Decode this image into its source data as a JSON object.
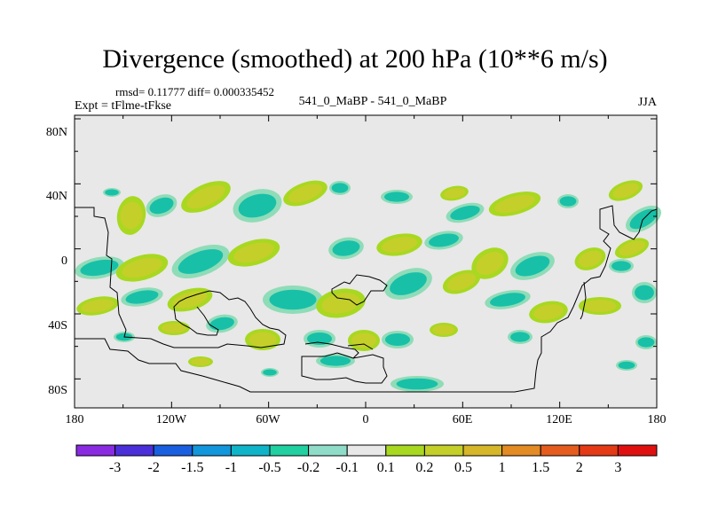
{
  "title": "Divergence (smoothed) at 200 hPa (10**6 m/s)",
  "stats": "rmsd= 0.11777 diff= 0.000335452",
  "experiment": "Expt = tFlme-tFkse",
  "case_label": "541_0_MaBP - 541_0_MaBP",
  "season": "JJA",
  "axes": {
    "lat_ticks": [
      "80N",
      "40N",
      "0",
      "40S",
      "80S"
    ],
    "lon_ticks": [
      "180",
      "120W",
      "60W",
      "0",
      "60E",
      "120E",
      "180"
    ]
  },
  "colorbar": {
    "labels": [
      "-3",
      "-2",
      "-1.5",
      "-1",
      "-0.5",
      "-0.2",
      "-0.1",
      "0.1",
      "0.2",
      "0.5",
      "1",
      "1.5",
      "2",
      "3"
    ],
    "colors": [
      "#8a2be2",
      "#4b2fd9",
      "#1a5fe0",
      "#1296dc",
      "#10b4c8",
      "#20d0a0",
      "#8fdcc8",
      "#e8e8e8",
      "#a8d820",
      "#c4cf2a",
      "#d6b62a",
      "#e38b24",
      "#e45c1e",
      "#e43a16",
      "#e01010"
    ]
  },
  "colors": {
    "background": "#e8e8e8",
    "negative": "#18c0a8",
    "negative_light": "#8fdcb8",
    "positive": "#c4cf2a",
    "positive_light": "#a8d820"
  }
}
